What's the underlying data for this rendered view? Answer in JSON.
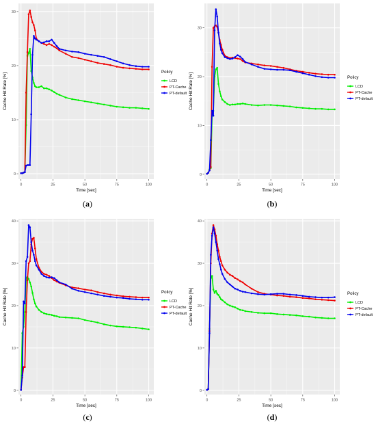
{
  "chart_data": [
    {
      "type": "line",
      "caption_prefix": "(",
      "caption_label": "a",
      "caption_suffix": ")",
      "xlabel": "Time [sec]",
      "ylabel": "Cache Hit Rate [%]",
      "xlim": [
        -2,
        104
      ],
      "ylim": [
        -1,
        31.5
      ],
      "xticks": [
        0,
        25,
        50,
        75,
        100
      ],
      "yticks": [
        0,
        10,
        20,
        30
      ],
      "legend_title": "Policy",
      "legend_placement": "right",
      "grid": true,
      "series": [
        {
          "name": "LCD",
          "color": "#00ee00",
          "x": [
            0,
            1,
            2,
            3,
            4,
            5,
            6,
            7,
            8,
            9,
            10,
            11,
            12,
            14,
            16,
            18,
            20,
            22,
            24,
            26,
            28,
            30,
            35,
            40,
            45,
            50,
            55,
            60,
            65,
            70,
            75,
            80,
            85,
            90,
            95,
            100
          ],
          "y": [
            0.1,
            0.1,
            0.2,
            0.3,
            9.0,
            21.8,
            22.3,
            23.1,
            19.0,
            17.8,
            16.8,
            16.2,
            16.0,
            16.0,
            16.2,
            15.8,
            15.8,
            15.6,
            15.4,
            15.1,
            14.8,
            14.6,
            14.1,
            13.8,
            13.6,
            13.4,
            13.2,
            13.0,
            12.8,
            12.6,
            12.4,
            12.3,
            12.2,
            12.2,
            12.1,
            12.0
          ]
        },
        {
          "name": "PT-Cache",
          "color": "#ee0000",
          "x": [
            0,
            1,
            2,
            3,
            4,
            5,
            6,
            7,
            8,
            9,
            10,
            11,
            12,
            14,
            16,
            18,
            20,
            22,
            24,
            26,
            28,
            30,
            35,
            40,
            45,
            50,
            55,
            60,
            65,
            70,
            75,
            80,
            85,
            90,
            95,
            100
          ],
          "y": [
            0.1,
            0.1,
            0.2,
            0.3,
            15.0,
            22.5,
            29.5,
            30.2,
            29.0,
            28.0,
            27.5,
            26.5,
            25.0,
            24.5,
            24.2,
            24.0,
            23.8,
            24.0,
            23.8,
            23.5,
            23.2,
            22.8,
            22.2,
            21.6,
            21.4,
            21.1,
            20.8,
            20.5,
            20.3,
            20.1,
            19.8,
            19.6,
            19.5,
            19.4,
            19.3,
            19.3
          ]
        },
        {
          "name": "PT-default",
          "color": "#0000ee",
          "x": [
            0,
            1,
            2,
            3,
            4,
            5,
            6,
            7,
            8,
            9,
            10,
            11,
            12,
            14,
            16,
            18,
            20,
            22,
            24,
            26,
            28,
            30,
            35,
            40,
            45,
            50,
            55,
            60,
            65,
            70,
            75,
            80,
            85,
            90,
            95,
            100
          ],
          "y": [
            0.1,
            0.1,
            0.2,
            0.3,
            1.5,
            1.6,
            1.6,
            1.6,
            11.0,
            22.0,
            25.5,
            25.0,
            24.8,
            24.5,
            24.2,
            24.3,
            24.5,
            24.5,
            24.8,
            24.2,
            23.6,
            23.1,
            22.8,
            22.6,
            22.5,
            22.2,
            22.0,
            21.8,
            21.6,
            21.2,
            20.8,
            20.4,
            20.1,
            19.9,
            19.8,
            19.8
          ]
        }
      ]
    },
    {
      "type": "line",
      "caption_prefix": "(",
      "caption_label": "b",
      "caption_suffix": ")",
      "xlabel": "Time [sec]",
      "ylabel": "Cache Hit Rate [%]",
      "xlim": [
        -2,
        104
      ],
      "ylim": [
        -1,
        35
      ],
      "xticks": [
        0,
        25,
        50,
        75,
        100
      ],
      "yticks": [
        0,
        10,
        20,
        30
      ],
      "legend_title": "Policy",
      "legend_placement": "right",
      "grid": true,
      "series": [
        {
          "name": "LCD",
          "color": "#00ee00",
          "x": [
            0,
            1,
            2,
            3,
            4,
            5,
            6,
            7,
            8,
            9,
            10,
            11,
            12,
            14,
            16,
            18,
            20,
            22,
            24,
            26,
            28,
            30,
            35,
            40,
            45,
            50,
            55,
            60,
            65,
            70,
            75,
            80,
            85,
            90,
            95,
            100
          ],
          "y": [
            0.1,
            0.3,
            1.0,
            1.3,
            12.0,
            13.0,
            20.0,
            21.5,
            21.8,
            18.5,
            17.0,
            16.0,
            15.3,
            14.8,
            14.4,
            14.2,
            14.3,
            14.3,
            14.4,
            14.4,
            14.5,
            14.4,
            14.2,
            14.1,
            14.2,
            14.2,
            14.1,
            14.0,
            13.9,
            13.7,
            13.6,
            13.5,
            13.4,
            13.4,
            13.3,
            13.3
          ]
        },
        {
          "name": "PT-Cache",
          "color": "#ee0000",
          "x": [
            0,
            1,
            2,
            3,
            4,
            5,
            6,
            7,
            8,
            9,
            10,
            11,
            12,
            14,
            16,
            18,
            20,
            22,
            24,
            26,
            28,
            30,
            35,
            40,
            45,
            50,
            55,
            60,
            65,
            70,
            75,
            80,
            85,
            90,
            95,
            100
          ],
          "y": [
            0.1,
            0.3,
            0.8,
            1.5,
            22.0,
            30.0,
            30.3,
            30.5,
            30.2,
            29.0,
            27.5,
            26.5,
            25.5,
            24.3,
            24.0,
            23.8,
            23.9,
            23.8,
            23.7,
            23.6,
            23.2,
            22.9,
            22.7,
            22.5,
            22.3,
            22.2,
            22.0,
            21.8,
            21.5,
            21.2,
            21.0,
            20.8,
            20.6,
            20.5,
            20.4,
            20.4
          ]
        },
        {
          "name": "PT-default",
          "color": "#0000ee",
          "x": [
            0,
            1,
            2,
            3,
            4,
            5,
            6,
            7,
            8,
            9,
            10,
            11,
            12,
            14,
            16,
            18,
            20,
            22,
            24,
            26,
            28,
            30,
            35,
            40,
            45,
            50,
            55,
            60,
            65,
            70,
            75,
            80,
            85,
            90,
            95,
            100
          ],
          "y": [
            0.1,
            0.3,
            0.8,
            7.0,
            13.0,
            12.0,
            29.5,
            33.8,
            32.3,
            29.0,
            26.8,
            25.5,
            24.8,
            24.0,
            23.8,
            23.6,
            23.7,
            24.0,
            24.4,
            24.1,
            23.6,
            23.0,
            22.5,
            22.0,
            21.6,
            21.5,
            21.4,
            21.4,
            21.3,
            21.0,
            20.7,
            20.4,
            20.1,
            19.9,
            19.8,
            19.8
          ]
        }
      ]
    },
    {
      "type": "line",
      "caption_prefix": "(",
      "caption_label": "c",
      "caption_suffix": ")",
      "xlabel": "Time [sec]",
      "ylabel": "Cache Hit Rate [%]",
      "xlim": [
        -2,
        104
      ],
      "ylim": [
        -1,
        40.5
      ],
      "xticks": [
        0,
        25,
        50,
        75,
        100
      ],
      "yticks": [
        0,
        10,
        20,
        30,
        40
      ],
      "legend_title": "Policy",
      "legend_placement": "right",
      "grid": true,
      "series": [
        {
          "name": "LCD",
          "color": "#00ee00",
          "x": [
            0,
            1,
            2,
            3,
            4,
            5,
            6,
            7,
            8,
            9,
            10,
            11,
            12,
            14,
            16,
            18,
            20,
            22,
            24,
            26,
            28,
            30,
            35,
            40,
            45,
            50,
            55,
            60,
            65,
            70,
            75,
            80,
            85,
            90,
            95,
            100
          ],
          "y": [
            0.1,
            13.5,
            15.0,
            18.5,
            26.5,
            26.8,
            26.3,
            25.5,
            24.5,
            23.0,
            21.5,
            20.5,
            19.8,
            19.0,
            18.5,
            18.2,
            18.0,
            17.9,
            17.8,
            17.6,
            17.5,
            17.3,
            17.2,
            17.1,
            17.0,
            16.6,
            16.3,
            16.0,
            15.6,
            15.3,
            15.1,
            15.0,
            14.9,
            14.8,
            14.6,
            14.4
          ]
        },
        {
          "name": "PT-Cache",
          "color": "#ee0000",
          "x": [
            0,
            1,
            2,
            3,
            4,
            5,
            6,
            7,
            8,
            9,
            10,
            11,
            12,
            14,
            16,
            18,
            20,
            22,
            24,
            26,
            28,
            30,
            35,
            40,
            45,
            50,
            55,
            60,
            65,
            70,
            75,
            80,
            85,
            90,
            95,
            100
          ],
          "y": [
            0.1,
            3.0,
            5.5,
            5.5,
            18.5,
            26.0,
            30.0,
            30.5,
            34.5,
            35.8,
            36.0,
            33.5,
            31.0,
            29.0,
            28.0,
            27.5,
            27.3,
            27.0,
            26.5,
            26.0,
            25.7,
            25.4,
            24.8,
            24.3,
            24.1,
            23.8,
            23.6,
            23.2,
            22.9,
            22.6,
            22.4,
            22.2,
            22.1,
            22.0,
            21.9,
            21.9
          ]
        },
        {
          "name": "PT-default",
          "color": "#0000ee",
          "x": [
            0,
            1,
            2,
            3,
            4,
            5,
            6,
            7,
            8,
            9,
            10,
            11,
            12,
            14,
            16,
            18,
            20,
            22,
            24,
            26,
            28,
            30,
            35,
            40,
            45,
            50,
            55,
            60,
            65,
            70,
            75,
            80,
            85,
            90,
            95,
            100
          ],
          "y": [
            0.1,
            3.5,
            21.0,
            20.5,
            30.5,
            31.5,
            39.0,
            38.5,
            35.0,
            33.0,
            32.0,
            30.5,
            29.5,
            28.5,
            27.5,
            27.0,
            26.7,
            26.6,
            26.7,
            26.5,
            26.0,
            25.5,
            25.0,
            24.0,
            23.5,
            23.2,
            22.9,
            22.6,
            22.3,
            22.1,
            21.9,
            21.8,
            21.6,
            21.5,
            21.4,
            21.4
          ]
        }
      ]
    },
    {
      "type": "line",
      "caption_prefix": "(",
      "caption_label": "d",
      "caption_suffix": ")",
      "xlabel": "Time [sec]",
      "ylabel": "Cache Hit Rate [%]",
      "xlim": [
        -2,
        104
      ],
      "ylim": [
        -1,
        40.5
      ],
      "xticks": [
        0,
        25,
        50,
        75,
        100
      ],
      "yticks": [
        0,
        10,
        20,
        30,
        40
      ],
      "legend_title": "Policy",
      "legend_placement": "right",
      "grid": true,
      "series": [
        {
          "name": "LCD",
          "color": "#00ee00",
          "x": [
            0,
            1,
            2,
            3,
            4,
            5,
            6,
            7,
            8,
            9,
            10,
            11,
            12,
            14,
            16,
            18,
            20,
            22,
            24,
            26,
            28,
            30,
            35,
            40,
            45,
            50,
            55,
            60,
            65,
            70,
            75,
            80,
            85,
            90,
            95,
            100
          ],
          "y": [
            0.1,
            0.3,
            14.5,
            26.5,
            27.0,
            23.8,
            23.0,
            23.5,
            22.8,
            22.5,
            22.0,
            21.5,
            21.3,
            20.8,
            20.3,
            20.0,
            19.8,
            19.6,
            19.3,
            19.0,
            18.9,
            18.7,
            18.5,
            18.3,
            18.2,
            18.2,
            18.0,
            17.9,
            17.8,
            17.7,
            17.5,
            17.4,
            17.2,
            17.1,
            17.0,
            17.0
          ]
        },
        {
          "name": "PT-Cache",
          "color": "#ee0000",
          "x": [
            0,
            1,
            2,
            3,
            4,
            5,
            6,
            7,
            8,
            9,
            10,
            11,
            12,
            14,
            16,
            18,
            20,
            22,
            24,
            26,
            28,
            30,
            35,
            40,
            45,
            50,
            55,
            60,
            65,
            70,
            75,
            80,
            85,
            90,
            95,
            100
          ],
          "y": [
            0.1,
            0.3,
            14.0,
            30.0,
            37.0,
            39.0,
            38.0,
            36.5,
            34.5,
            33.0,
            31.5,
            30.5,
            29.5,
            28.5,
            27.8,
            27.3,
            27.0,
            26.5,
            26.2,
            25.8,
            25.5,
            25.0,
            24.0,
            23.2,
            22.8,
            22.6,
            22.4,
            22.3,
            22.1,
            22.0,
            21.8,
            21.7,
            21.5,
            21.4,
            21.3,
            21.2
          ]
        },
        {
          "name": "PT-default",
          "color": "#0000ee",
          "x": [
            0,
            1,
            2,
            3,
            4,
            5,
            6,
            7,
            8,
            9,
            10,
            11,
            12,
            14,
            16,
            18,
            20,
            22,
            24,
            26,
            28,
            30,
            35,
            40,
            45,
            50,
            55,
            60,
            65,
            70,
            75,
            80,
            85,
            90,
            95,
            100
          ],
          "y": [
            0.1,
            0.3,
            13.5,
            32.0,
            36.5,
            38.5,
            37.0,
            35.0,
            33.0,
            31.0,
            29.8,
            28.5,
            27.5,
            26.3,
            25.5,
            25.0,
            24.5,
            24.0,
            23.8,
            23.5,
            23.3,
            23.2,
            22.9,
            22.7,
            22.6,
            22.7,
            22.8,
            22.8,
            22.6,
            22.5,
            22.3,
            22.1,
            22.0,
            21.9,
            21.9,
            22.0
          ]
        }
      ]
    }
  ]
}
